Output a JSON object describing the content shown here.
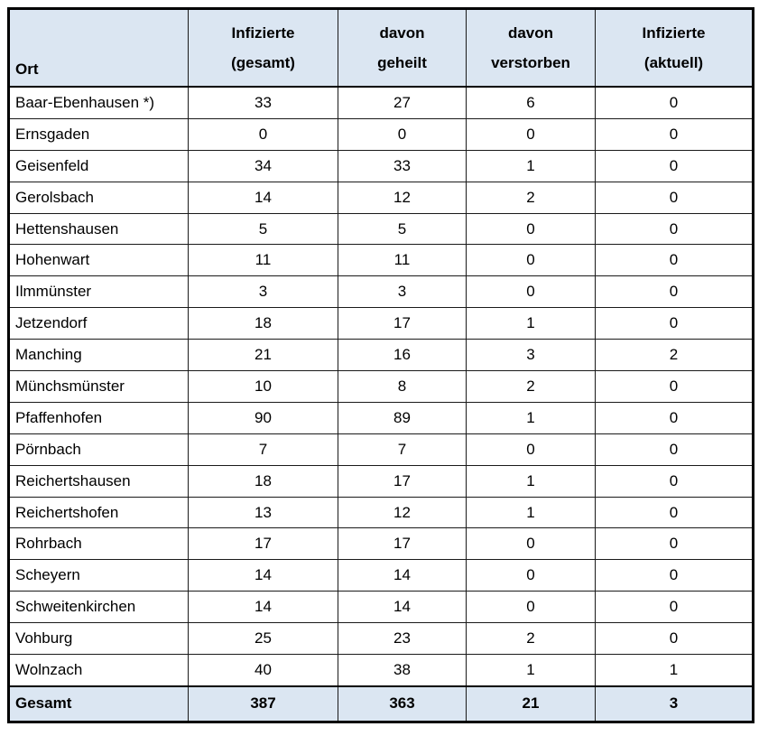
{
  "colors": {
    "header_bg": "#dbe6f2",
    "border": "#000000",
    "text": "#000000"
  },
  "table": {
    "header": {
      "ort": "Ort",
      "cols": [
        {
          "line1": "Infizierte",
          "line2": "(gesamt)"
        },
        {
          "line1": "davon",
          "line2": "geheilt"
        },
        {
          "line1": "davon",
          "line2": "verstorben"
        },
        {
          "line1": "Infizierte",
          "line2": "(aktuell)"
        }
      ]
    },
    "rows": [
      [
        "Baar-Ebenhausen *)",
        "33",
        "27",
        "6",
        "0"
      ],
      [
        "Ernsgaden",
        "0",
        "0",
        "0",
        "0"
      ],
      [
        "Geisenfeld",
        "34",
        "33",
        "1",
        "0"
      ],
      [
        "Gerolsbach",
        "14",
        "12",
        "2",
        "0"
      ],
      [
        "Hettenshausen",
        "5",
        "5",
        "0",
        "0"
      ],
      [
        "Hohenwart",
        "11",
        "11",
        "0",
        "0"
      ],
      [
        "Ilmmünster",
        "3",
        "3",
        "0",
        "0"
      ],
      [
        "Jetzendorf",
        "18",
        "17",
        "1",
        "0"
      ],
      [
        "Manching",
        "21",
        "16",
        "3",
        "2"
      ],
      [
        "Münchsmünster",
        "10",
        "8",
        "2",
        "0"
      ],
      [
        "Pfaffenhofen",
        "90",
        "89",
        "1",
        "0"
      ],
      [
        "Pörnbach",
        "7",
        "7",
        "0",
        "0"
      ],
      [
        "Reichertshausen",
        "18",
        "17",
        "1",
        "0"
      ],
      [
        "Reichertshofen",
        "13",
        "12",
        "1",
        "0"
      ],
      [
        "Rohrbach",
        "17",
        "17",
        "0",
        "0"
      ],
      [
        "Scheyern",
        "14",
        "14",
        "0",
        "0"
      ],
      [
        "Schweitenkirchen",
        "14",
        "14",
        "0",
        "0"
      ],
      [
        "Vohburg",
        "25",
        "23",
        "2",
        "0"
      ],
      [
        "Wolnzach",
        "40",
        "38",
        "1",
        "1"
      ]
    ],
    "total": [
      "Gesamt",
      "387",
      "363",
      "21",
      "3"
    ]
  }
}
